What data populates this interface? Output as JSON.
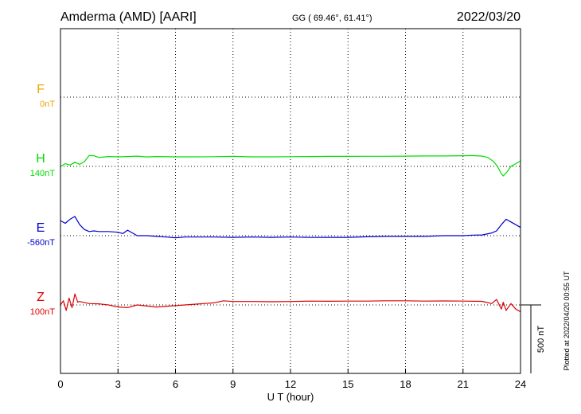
{
  "header": {
    "station": "Amderma (AMD)  [AARI]",
    "coords": "GG ( 69.46°,  61.41°)",
    "date": "2022/03/20"
  },
  "plotted_note": "Plotted at 2022/04/20 00:55 UT",
  "scale_label": "500 nT",
  "colors": {
    "F": "#e8a800",
    "H": "#00dd00",
    "E": "#0000cc",
    "Z": "#dd0000",
    "grid": "#000000"
  },
  "chart_data": {
    "type": "line",
    "title": "",
    "xlabel": "U T (hour)",
    "ylabel": "",
    "xlim": [
      0,
      24
    ],
    "x_ticks": [
      "0",
      "3",
      "6",
      "9",
      "12",
      "15",
      "18",
      "21",
      "24"
    ],
    "scale_nT": 500,
    "grid": true,
    "series": [
      {
        "name": "F",
        "baseline_label": "0nT",
        "x": [],
        "values": []
      },
      {
        "name": "H",
        "baseline_label": "140nT",
        "x": [
          0,
          0.25,
          0.5,
          0.75,
          1.0,
          1.25,
          1.5,
          1.75,
          2.0,
          2.5,
          3.0,
          3.5,
          4.0,
          4.5,
          5.0,
          6.0,
          7.0,
          8.0,
          9.0,
          10.0,
          11.0,
          12.0,
          13.0,
          14.0,
          15.0,
          16.0,
          17.0,
          18.0,
          19.0,
          20.0,
          21.0,
          21.5,
          22.0,
          22.3,
          22.6,
          22.8,
          23.0,
          23.1,
          23.3,
          23.5,
          23.75,
          24.0
        ],
        "values": [
          140,
          160,
          150,
          170,
          155,
          175,
          220,
          218,
          205,
          212,
          210,
          212,
          215,
          209,
          212,
          210,
          210,
          211,
          213,
          210,
          210,
          211,
          212,
          213,
          213,
          214,
          214,
          215,
          216,
          216,
          218,
          219,
          215,
          205,
          175,
          140,
          85,
          70,
          100,
          140,
          160,
          180
        ]
      },
      {
        "name": "E",
        "baseline_label": "-560nT",
        "x": [
          0,
          0.25,
          0.5,
          0.75,
          1.0,
          1.25,
          1.5,
          1.75,
          2.0,
          2.5,
          3.0,
          3.25,
          3.5,
          4.0,
          4.5,
          5.0,
          5.5,
          6.0,
          6.5,
          7.0,
          8.0,
          9.0,
          10.0,
          11.0,
          12.0,
          13.0,
          14.0,
          15.0,
          16.0,
          17.0,
          18.0,
          19.0,
          20.0,
          21.0,
          21.5,
          22.0,
          22.5,
          22.75,
          23.0,
          23.25,
          23.5,
          23.75,
          24.0
        ],
        "values": [
          -450,
          -470,
          -440,
          -420,
          -480,
          -515,
          -530,
          -525,
          -530,
          -530,
          -535,
          -545,
          -520,
          -560,
          -560,
          -565,
          -570,
          -575,
          -570,
          -570,
          -570,
          -572,
          -570,
          -572,
          -570,
          -573,
          -572,
          -572,
          -568,
          -565,
          -565,
          -565,
          -560,
          -560,
          -556,
          -555,
          -540,
          -525,
          -480,
          -440,
          -460,
          -480,
          -500
        ]
      },
      {
        "name": "Z",
        "baseline_label": "100nT",
        "x": [
          0,
          0.15,
          0.3,
          0.45,
          0.6,
          0.75,
          0.9,
          1.0,
          1.5,
          2.0,
          2.5,
          3.0,
          3.5,
          4.0,
          5.0,
          6.0,
          7.0,
          8.0,
          8.5,
          9.0,
          10.0,
          11.0,
          12.0,
          13.0,
          14.0,
          15.0,
          16.0,
          17.0,
          18.0,
          19.0,
          20.0,
          21.0,
          22.0,
          22.5,
          22.75,
          23.0,
          23.1,
          23.25,
          23.5,
          23.75,
          24.0
        ],
        "values": [
          100,
          130,
          60,
          150,
          80,
          180,
          120,
          125,
          110,
          108,
          100,
          85,
          80,
          100,
          85,
          95,
          105,
          115,
          130,
          125,
          125,
          123,
          125,
          128,
          127,
          128,
          128,
          130,
          130,
          128,
          129,
          128,
          126,
          110,
          140,
          70,
          120,
          60,
          110,
          70,
          50
        ]
      }
    ]
  }
}
